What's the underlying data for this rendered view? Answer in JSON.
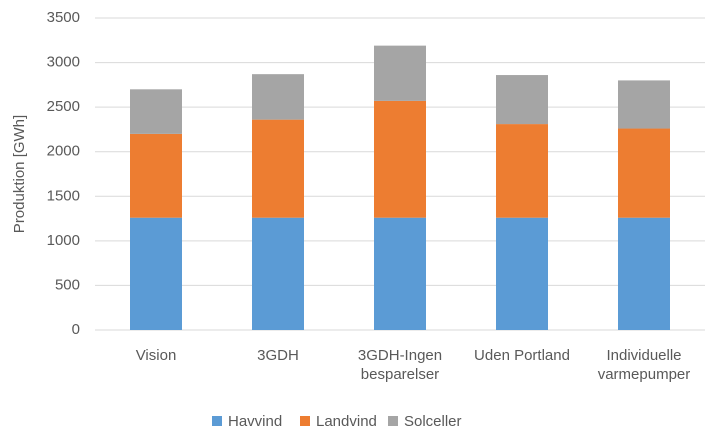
{
  "chart_data": {
    "type": "stacked_bar",
    "y_label": "Produktion [GWh]",
    "categories": [
      "Vision",
      "3GDH",
      "3GDH-Ingen\nbesparelser",
      "Uden Portland",
      "Individuelle\nvarmepumper"
    ],
    "series": [
      {
        "name": "Havvind",
        "color": "#5b9bd5",
        "values": [
          1260,
          1260,
          1260,
          1260,
          1260
        ]
      },
      {
        "name": "Landvind",
        "color": "#ed7d31",
        "values": [
          940,
          1100,
          1310,
          1050,
          1000
        ]
      },
      {
        "name": "Solceller",
        "color": "#a5a5a5",
        "values": [
          500,
          510,
          620,
          550,
          540
        ]
      }
    ],
    "ylim": [
      0,
      3500
    ],
    "yticks": [
      0,
      500,
      1000,
      1500,
      2000,
      2500,
      3000,
      3500
    ],
    "grid": true
  }
}
